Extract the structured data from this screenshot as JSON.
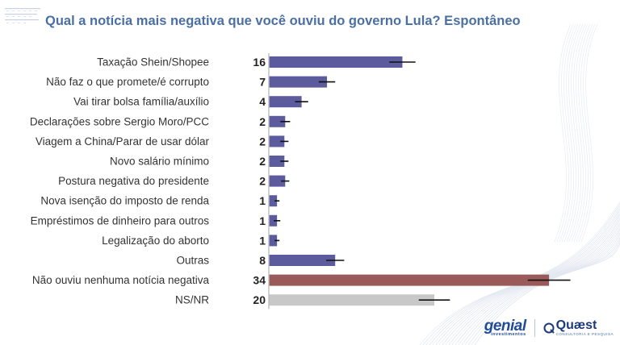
{
  "title": "Qual a notícia mais negativa que você ouviu do governo Lula? Espontâneo",
  "brands": {
    "genial": "genial",
    "genial_sub": "investimentos",
    "quaest": "Quæst",
    "quaest_sub": "CONSULTORIA E PESQUISA"
  },
  "colors": {
    "title": "#4a6fa5",
    "bar_default": "#5b5b9e",
    "bar_none": "#9b5a5a",
    "bar_nsnr": "#c8c8c8",
    "error": "#111111"
  },
  "chart_data": {
    "type": "bar",
    "orientation": "horizontal",
    "categories": [
      "Taxação Shein/Shopee",
      "Não faz o que promete/é corrupto",
      "Vai tirar bolsa família/auxílio",
      "Declarações sobre Sergio Moro/PCC",
      "Viagem a China/Parar de usar dólar",
      "Novo salário mínimo",
      "Postura negativa do presidente",
      "Nova isenção do imposto de renda",
      "Empréstimos de dinheiro para outros",
      "Legalização do aborto",
      "Outras",
      "Não ouviu nenhuma notícia negativa",
      "NS/NR"
    ],
    "values": [
      16,
      7,
      4,
      2,
      2,
      2,
      2,
      1,
      1,
      1,
      8,
      34,
      20
    ],
    "bar_values": [
      16.3,
      7.1,
      4.0,
      2.0,
      1.9,
      1.9,
      2.0,
      1.0,
      1.0,
      1.0,
      8.1,
      34.2,
      20.2
    ],
    "error_margin": [
      1.6,
      1.0,
      0.8,
      0.6,
      0.5,
      0.5,
      0.5,
      0.3,
      0.4,
      0.3,
      1.1,
      2.6,
      1.9
    ],
    "bar_colors": [
      "default",
      "default",
      "default",
      "default",
      "default",
      "default",
      "default",
      "default",
      "default",
      "default",
      "default",
      "none",
      "nsnr"
    ],
    "xlim": [
      0,
      38
    ],
    "grid": false,
    "legend": "none"
  }
}
